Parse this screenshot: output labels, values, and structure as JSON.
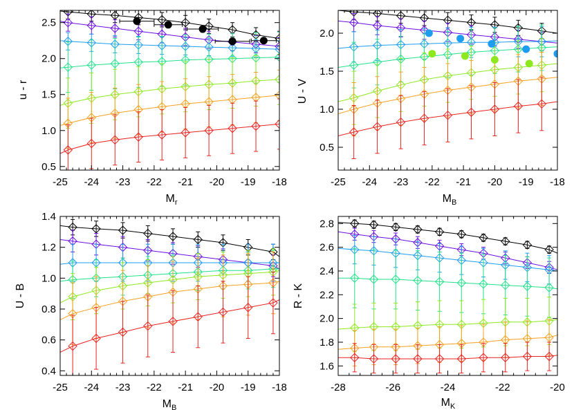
{
  "chart_data": [
    {
      "type": "scatter",
      "xlabel": "M",
      "xlabel_sub": "r",
      "ylabel": "u - r",
      "xlim": [
        -25,
        -18
      ],
      "ylim": [
        0.45,
        2.67
      ],
      "xticks": [
        -25,
        -24,
        -23,
        -22,
        -21,
        -20,
        -19,
        -18
      ],
      "yticks": [
        0.5,
        1.0,
        1.5,
        2.0,
        2.5
      ],
      "ytick_labels": [
        "0.5",
        "1.0",
        "1.5",
        "2.0",
        "2.5"
      ],
      "x": [
        -24.75,
        -24.0,
        -23.25,
        -22.5,
        -21.75,
        -21.0,
        -20.25,
        -19.5,
        -18.75,
        -18.0
      ],
      "series": [
        {
          "color": "#000000",
          "values": [
            2.65,
            2.62,
            2.6,
            2.57,
            2.54,
            2.5,
            2.45,
            2.4,
            2.33,
            2.28
          ],
          "err": 0.1,
          "curve": [
            2.66,
            2.21
          ]
        },
        {
          "color": "#6a0de0",
          "values": [
            2.5,
            2.46,
            2.42,
            2.38,
            2.34,
            2.3,
            2.26,
            2.23,
            2.2,
            2.17
          ],
          "err": 0.12,
          "curve": [
            2.52,
            2.15
          ]
        },
        {
          "color": "#1e9cf0",
          "values": [
            2.24,
            2.22,
            2.2,
            2.19,
            2.18,
            2.17,
            2.16,
            2.15,
            2.14,
            2.13
          ],
          "err": 0.12,
          "curve": [
            2.25,
            2.12
          ]
        },
        {
          "color": "#22e08a",
          "values": [
            1.88,
            1.91,
            1.93,
            1.95,
            1.96,
            1.98,
            1.99,
            2.0,
            2.01,
            2.02
          ],
          "err": 0.35,
          "curve": [
            1.87,
            2.03
          ]
        },
        {
          "color": "#8de820",
          "values": [
            1.38,
            1.45,
            1.5,
            1.54,
            1.58,
            1.61,
            1.64,
            1.66,
            1.69,
            1.71
          ],
          "err": 0.35,
          "curve": [
            1.35,
            1.72
          ]
        },
        {
          "color": "#f5a020",
          "values": [
            1.1,
            1.18,
            1.24,
            1.29,
            1.33,
            1.37,
            1.4,
            1.43,
            1.46,
            1.49
          ],
          "err": 0.35,
          "curve": [
            1.07,
            1.5
          ]
        },
        {
          "color": "#e8221e",
          "values": [
            0.73,
            0.82,
            0.87,
            0.91,
            0.94,
            0.97,
            1.0,
            1.03,
            1.06,
            1.09
          ],
          "err": 0.35,
          "curve": [
            0.68,
            1.11
          ]
        }
      ],
      "points": [
        {
          "x": -22.55,
          "y": 2.52,
          "xerr": 0.55,
          "color": "#000000"
        },
        {
          "x": -21.55,
          "y": 2.47,
          "xerr": 0.45,
          "color": "#000000"
        },
        {
          "x": -20.45,
          "y": 2.41,
          "xerr": 0.5,
          "color": "#000000"
        },
        {
          "x": -19.5,
          "y": 2.24,
          "xerr": 0.55,
          "color": "#000000"
        },
        {
          "x": -18.5,
          "y": 2.25,
          "xerr": 0.4,
          "color": "#000000"
        }
      ]
    },
    {
      "type": "scatter",
      "xlabel": "M",
      "xlabel_sub": "B",
      "ylabel": "U - V",
      "xlim": [
        -25,
        -18
      ],
      "ylim": [
        0.2,
        2.3
      ],
      "xticks": [
        -25,
        -24,
        -23,
        -22,
        -21,
        -20,
        -19,
        -18
      ],
      "yticks": [
        0.5,
        1.0,
        1.5,
        2.0
      ],
      "ytick_labels": [
        "0.5",
        "1.0",
        "1.5",
        "2.0"
      ],
      "x": [
        -24.5,
        -23.75,
        -23.0,
        -22.25,
        -21.5,
        -20.75,
        -20.0,
        -19.25,
        -18.5
      ],
      "series": [
        {
          "color": "#000000",
          "values": [
            2.28,
            2.26,
            2.23,
            2.2,
            2.17,
            2.14,
            2.11,
            2.07,
            2.03
          ],
          "err": 0.1,
          "curve": [
            2.3,
            2.0
          ]
        },
        {
          "color": "#6a0de0",
          "values": [
            2.14,
            2.1,
            2.07,
            2.04,
            2.01,
            1.98,
            1.95,
            1.92,
            1.89
          ],
          "err": 0.12,
          "curve": [
            2.16,
            1.87
          ]
        },
        {
          "color": "#1e9cf0",
          "values": [
            1.82,
            1.84,
            1.85,
            1.86,
            1.87,
            1.88,
            1.88,
            1.89,
            1.89
          ],
          "err": 0.2,
          "curve": [
            1.8,
            1.9
          ]
        },
        {
          "color": "#22e08a",
          "values": [
            1.58,
            1.62,
            1.66,
            1.69,
            1.72,
            1.75,
            1.77,
            1.79,
            1.81
          ],
          "err": 0.3,
          "curve": [
            1.55,
            1.82
          ]
        },
        {
          "color": "#8de820",
          "values": [
            1.15,
            1.24,
            1.32,
            1.39,
            1.44,
            1.48,
            1.52,
            1.55,
            1.58
          ],
          "err": 0.35,
          "curve": [
            1.1,
            1.6
          ]
        },
        {
          "color": "#f5a020",
          "values": [
            1.0,
            1.08,
            1.14,
            1.2,
            1.25,
            1.29,
            1.33,
            1.37,
            1.4
          ],
          "err": 0.35,
          "curve": [
            0.94,
            1.42
          ]
        },
        {
          "color": "#e8221e",
          "values": [
            0.7,
            0.77,
            0.83,
            0.88,
            0.92,
            0.96,
            1.0,
            1.04,
            1.07
          ],
          "err": 0.35,
          "curve": [
            0.65,
            1.1
          ]
        }
      ],
      "points": [
        {
          "x": -22.1,
          "y": 2.0,
          "color": "#1e9cf0"
        },
        {
          "x": -21.1,
          "y": 1.93,
          "color": "#1e9cf0"
        },
        {
          "x": -20.1,
          "y": 1.86,
          "color": "#1e9cf0"
        },
        {
          "x": -19.0,
          "y": 1.79,
          "color": "#1e9cf0"
        },
        {
          "x": -18.0,
          "y": 1.73,
          "color": "#1e9cf0"
        },
        {
          "x": -22.0,
          "y": 1.73,
          "color": "#8de820"
        },
        {
          "x": -20.95,
          "y": 1.7,
          "color": "#8de820"
        },
        {
          "x": -20.0,
          "y": 1.65,
          "color": "#8de820"
        },
        {
          "x": -18.9,
          "y": 1.6,
          "color": "#8de820"
        }
      ]
    },
    {
      "type": "scatter",
      "xlabel": "M",
      "xlabel_sub": "B",
      "ylabel": "U - B",
      "xlim": [
        -25,
        -18
      ],
      "ylim": [
        0.37,
        1.4
      ],
      "xticks": [
        -25,
        -24,
        -23,
        -22,
        -21,
        -20,
        -19,
        -18
      ],
      "yticks": [
        0.4,
        0.6,
        0.8,
        1.0,
        1.2,
        1.4
      ],
      "ytick_labels": [
        "0.4",
        "0.6",
        "0.8",
        "1.0",
        "1.2",
        "1.4"
      ],
      "x": [
        -24.6,
        -23.85,
        -23.0,
        -22.2,
        -21.4,
        -20.6,
        -19.8,
        -19.0,
        -18.2
      ],
      "series": [
        {
          "color": "#000000",
          "values": [
            1.33,
            1.32,
            1.31,
            1.29,
            1.27,
            1.25,
            1.23,
            1.2,
            1.17
          ],
          "err": 0.05,
          "curve": [
            1.34,
            1.14
          ]
        },
        {
          "color": "#6a0de0",
          "values": [
            1.24,
            1.22,
            1.2,
            1.18,
            1.16,
            1.14,
            1.12,
            1.1,
            1.08
          ],
          "err": 0.07,
          "curve": [
            1.25,
            1.06
          ]
        },
        {
          "color": "#1e9cf0",
          "values": [
            1.1,
            1.1,
            1.1,
            1.1,
            1.1,
            1.1,
            1.1,
            1.1,
            1.1
          ],
          "err": 0.12,
          "curve": [
            1.09,
            1.1
          ]
        },
        {
          "color": "#22e08a",
          "values": [
            0.99,
            1.0,
            1.01,
            1.02,
            1.03,
            1.04,
            1.05,
            1.05,
            1.06
          ],
          "err": 0.12,
          "curve": [
            0.98,
            1.06
          ]
        },
        {
          "color": "#8de820",
          "values": [
            0.88,
            0.92,
            0.95,
            0.97,
            0.99,
            1.01,
            1.02,
            1.03,
            1.04
          ],
          "err": 0.15,
          "curve": [
            0.84,
            1.05
          ]
        },
        {
          "color": "#f5a020",
          "values": [
            0.77,
            0.81,
            0.85,
            0.88,
            0.91,
            0.93,
            0.95,
            0.96,
            0.97
          ],
          "err": 0.2,
          "curve": [
            0.73,
            0.98
          ]
        },
        {
          "color": "#e8221e",
          "values": [
            0.56,
            0.61,
            0.65,
            0.69,
            0.72,
            0.75,
            0.78,
            0.81,
            0.84
          ],
          "err": 0.2,
          "curve": [
            0.52,
            0.86
          ]
        }
      ],
      "points": []
    },
    {
      "type": "scatter",
      "xlabel": "M",
      "xlabel_sub": "K",
      "ylabel": "R - K",
      "xlim": [
        -28,
        -20
      ],
      "ylim": [
        1.52,
        2.86
      ],
      "xticks": [
        -28,
        -26,
        -24,
        -22,
        -20
      ],
      "yticks": [
        1.6,
        1.8,
        2.0,
        2.2,
        2.4,
        2.6,
        2.8
      ],
      "ytick_labels": [
        "1.6",
        "1.8",
        "2.0",
        "2.2",
        "2.4",
        "2.6",
        "2.8"
      ],
      "x": [
        -27.4,
        -26.7,
        -25.9,
        -25.1,
        -24.3,
        -23.5,
        -22.7,
        -21.9,
        -21.1,
        -20.3
      ],
      "series": [
        {
          "color": "#000000",
          "values": [
            2.8,
            2.79,
            2.77,
            2.75,
            2.73,
            2.71,
            2.68,
            2.65,
            2.62,
            2.58
          ],
          "err": 0.03,
          "curve": [
            2.81,
            2.55
          ]
        },
        {
          "color": "#6a0de0",
          "values": [
            2.71,
            2.69,
            2.67,
            2.64,
            2.61,
            2.58,
            2.55,
            2.51,
            2.47,
            2.43
          ],
          "err": 0.05,
          "curve": [
            2.73,
            2.41
          ]
        },
        {
          "color": "#1e9cf0",
          "values": [
            2.58,
            2.57,
            2.55,
            2.53,
            2.51,
            2.49,
            2.47,
            2.45,
            2.43,
            2.41
          ],
          "err": 0.12,
          "curve": [
            2.59,
            2.4
          ]
        },
        {
          "color": "#22e08a",
          "values": [
            2.34,
            2.33,
            2.33,
            2.32,
            2.31,
            2.3,
            2.29,
            2.28,
            2.27,
            2.26
          ],
          "err": 0.25,
          "curve": [
            2.34,
            2.25
          ]
        },
        {
          "color": "#8de820",
          "values": [
            1.92,
            1.93,
            1.93,
            1.94,
            1.95,
            1.95,
            1.96,
            1.97,
            1.97,
            1.98
          ],
          "err": 0.2,
          "curve": [
            1.91,
            1.99
          ]
        },
        {
          "color": "#f5a020",
          "values": [
            1.75,
            1.76,
            1.76,
            1.77,
            1.78,
            1.79,
            1.8,
            1.82,
            1.83,
            1.84
          ],
          "err": 0.15,
          "curve": [
            1.74,
            1.86
          ]
        },
        {
          "color": "#e8221e",
          "values": [
            1.67,
            1.66,
            1.66,
            1.66,
            1.66,
            1.66,
            1.67,
            1.67,
            1.68,
            1.68
          ],
          "err": 0.12,
          "curve": [
            1.67,
            1.69
          ]
        }
      ],
      "points": []
    }
  ]
}
